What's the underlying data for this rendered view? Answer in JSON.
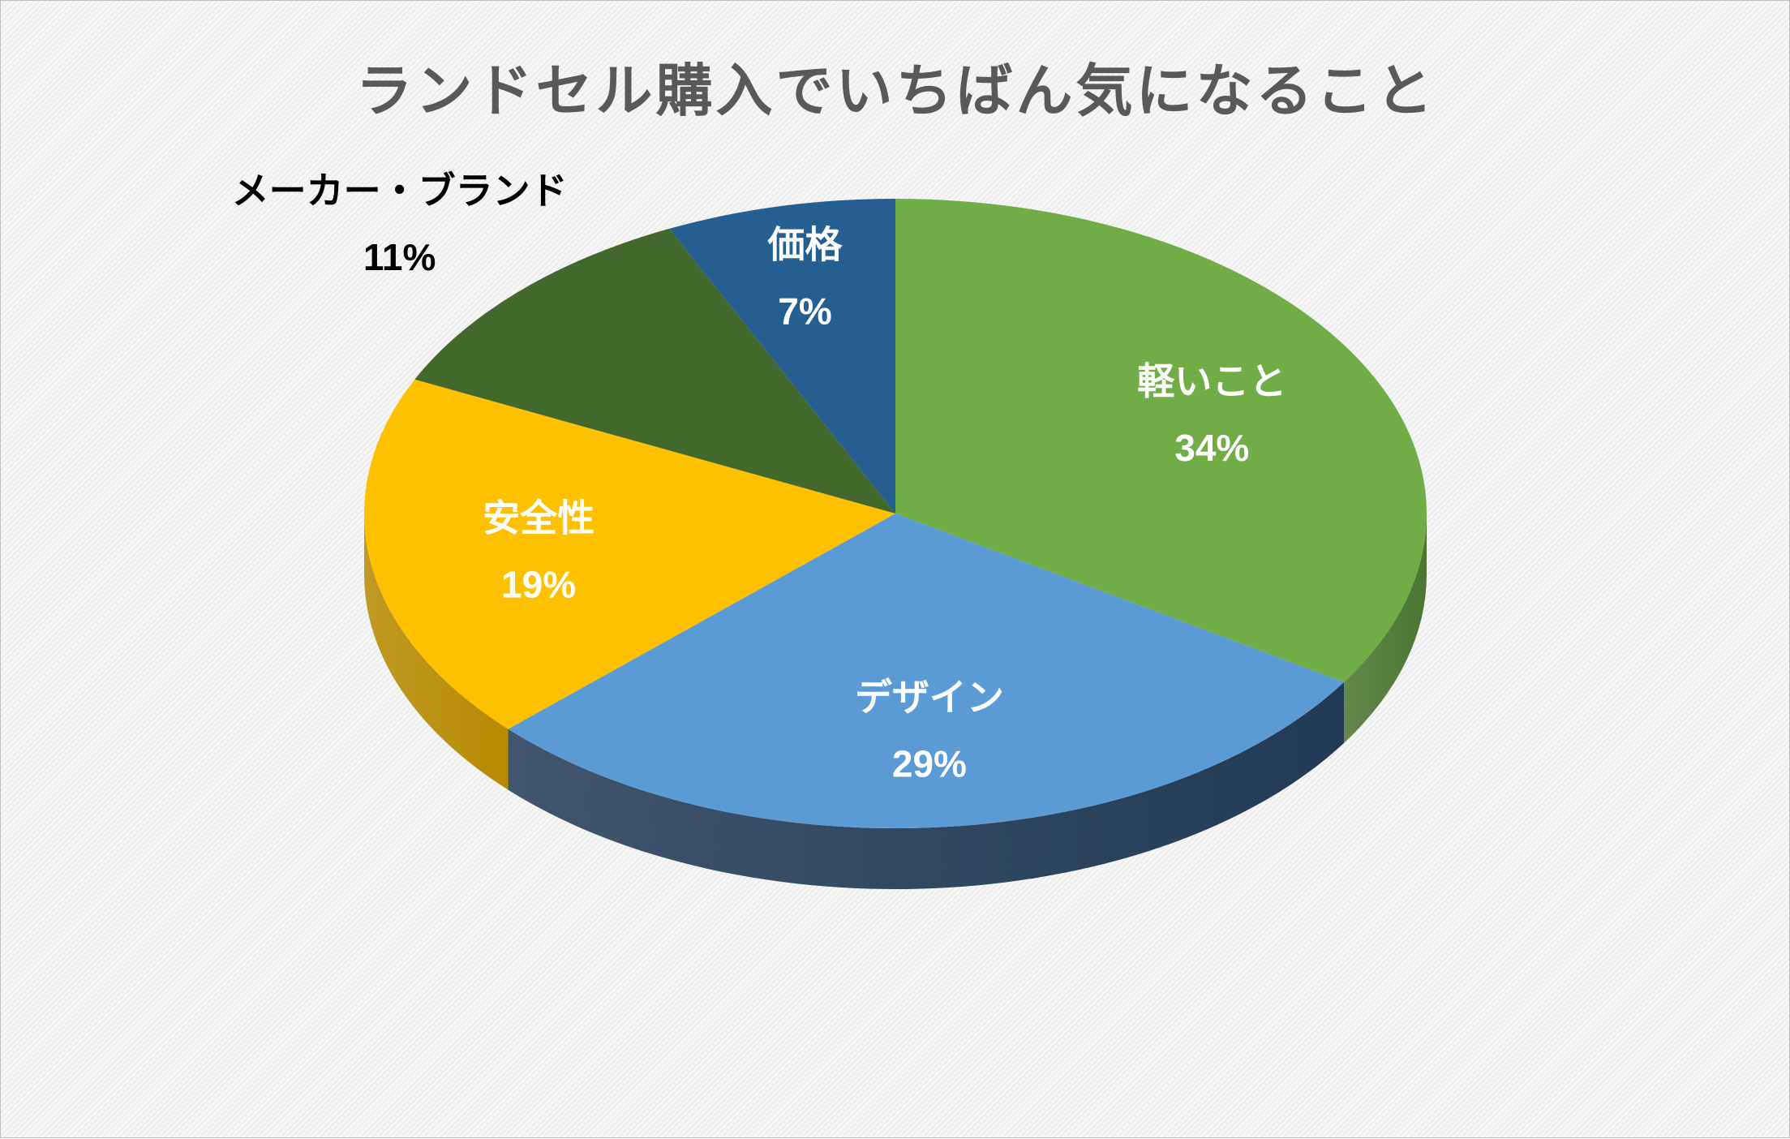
{
  "chart_data": {
    "type": "pie",
    "title": "ランドセル購入でいちばん気になること",
    "slices": [
      {
        "label": "軽いこと",
        "value": 34,
        "value_label": "34%",
        "color": "#70AD47",
        "side": "#4B7530",
        "text_color": "#FFFFFF"
      },
      {
        "label": "デザイン",
        "value": 29,
        "value_label": "29%",
        "color": "#5B9BD5",
        "side": "#223A55",
        "text_color": "#FFFFFF"
      },
      {
        "label": "安全性",
        "value": 19,
        "value_label": "19%",
        "color": "#FFC000",
        "side": "#B78A00",
        "text_color": "#FFFFFF"
      },
      {
        "label": "メーカー・ブランド",
        "value": 11,
        "value_label": "11%",
        "color": "#43682B",
        "side": "#2E471E",
        "text_color": "#000000"
      },
      {
        "label": "価格",
        "value": 7,
        "value_label": "7%",
        "color": "#255E91",
        "side": "#1A4266",
        "text_color": "#FFFFFF"
      }
    ],
    "start": "12 o'clock",
    "direction": "clockwise",
    "style": "3d-tilted",
    "legend": "none",
    "data_labels": "category and percent"
  }
}
